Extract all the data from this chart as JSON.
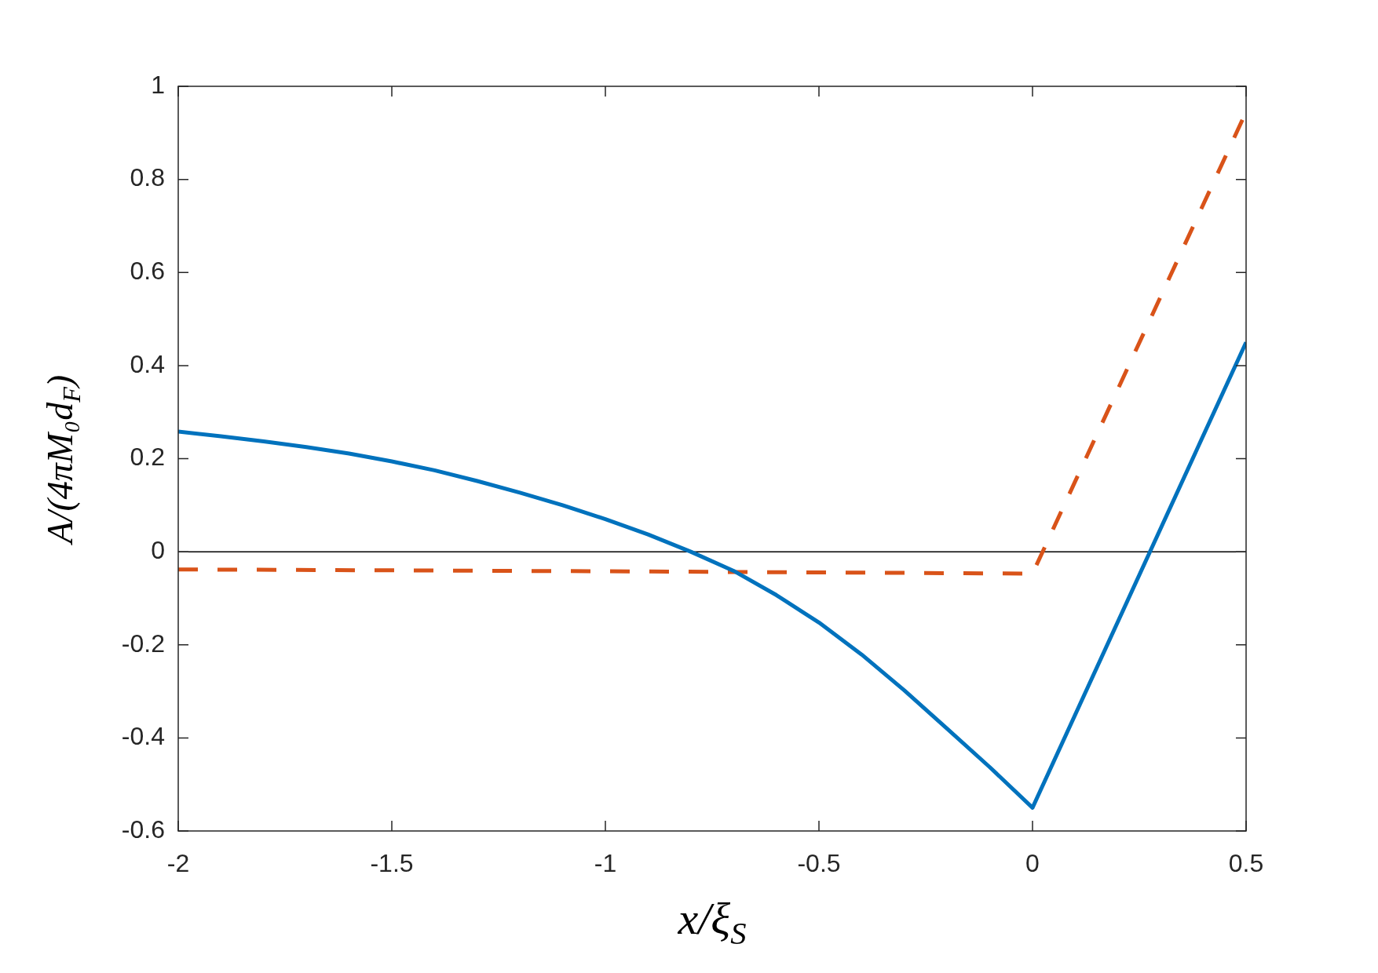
{
  "chart_data": {
    "type": "line",
    "xlabel": "x/ξ$_{S}$",
    "ylabel": "A/(4πM₀d$_{F}$)",
    "xlim": [
      -2,
      0.5
    ],
    "xticks": [
      -2,
      -1.5,
      -1,
      -0.5,
      0,
      0.5
    ],
    "ylim": [
      -0.6,
      1
    ],
    "yticks": [
      -0.6,
      -0.4,
      -0.2,
      0,
      0.2,
      0.4,
      0.6,
      0.8,
      1
    ],
    "grid": false,
    "ref_lines": [
      {
        "axis": "y",
        "value": 0,
        "color": "#000000"
      }
    ],
    "series": [
      {
        "color": "#0072bd",
        "line_style": "solid",
        "x": [
          -2,
          -1.9,
          -1.8,
          -1.7,
          -1.6,
          -1.5,
          -1.4,
          -1.3,
          -1.2,
          -1.1,
          -1.0,
          -0.9,
          -0.8,
          -0.7,
          -0.6,
          -0.5,
          -0.4,
          -0.3,
          -0.2,
          -0.1,
          0,
          0.5
        ],
        "values": [
          0.258,
          0.248,
          0.237,
          0.225,
          0.211,
          0.194,
          0.175,
          0.152,
          0.127,
          0.1,
          0.07,
          0.037,
          0.0,
          -0.041,
          -0.093,
          -0.152,
          -0.221,
          -0.298,
          -0.38,
          -0.463,
          -0.55,
          0.45
        ]
      },
      {
        "color": "#d95319",
        "line_style": "dashed",
        "x": [
          -2,
          -1,
          0,
          0.5
        ],
        "values": [
          -0.038,
          -0.042,
          -0.047,
          0.945
        ]
      }
    ]
  }
}
